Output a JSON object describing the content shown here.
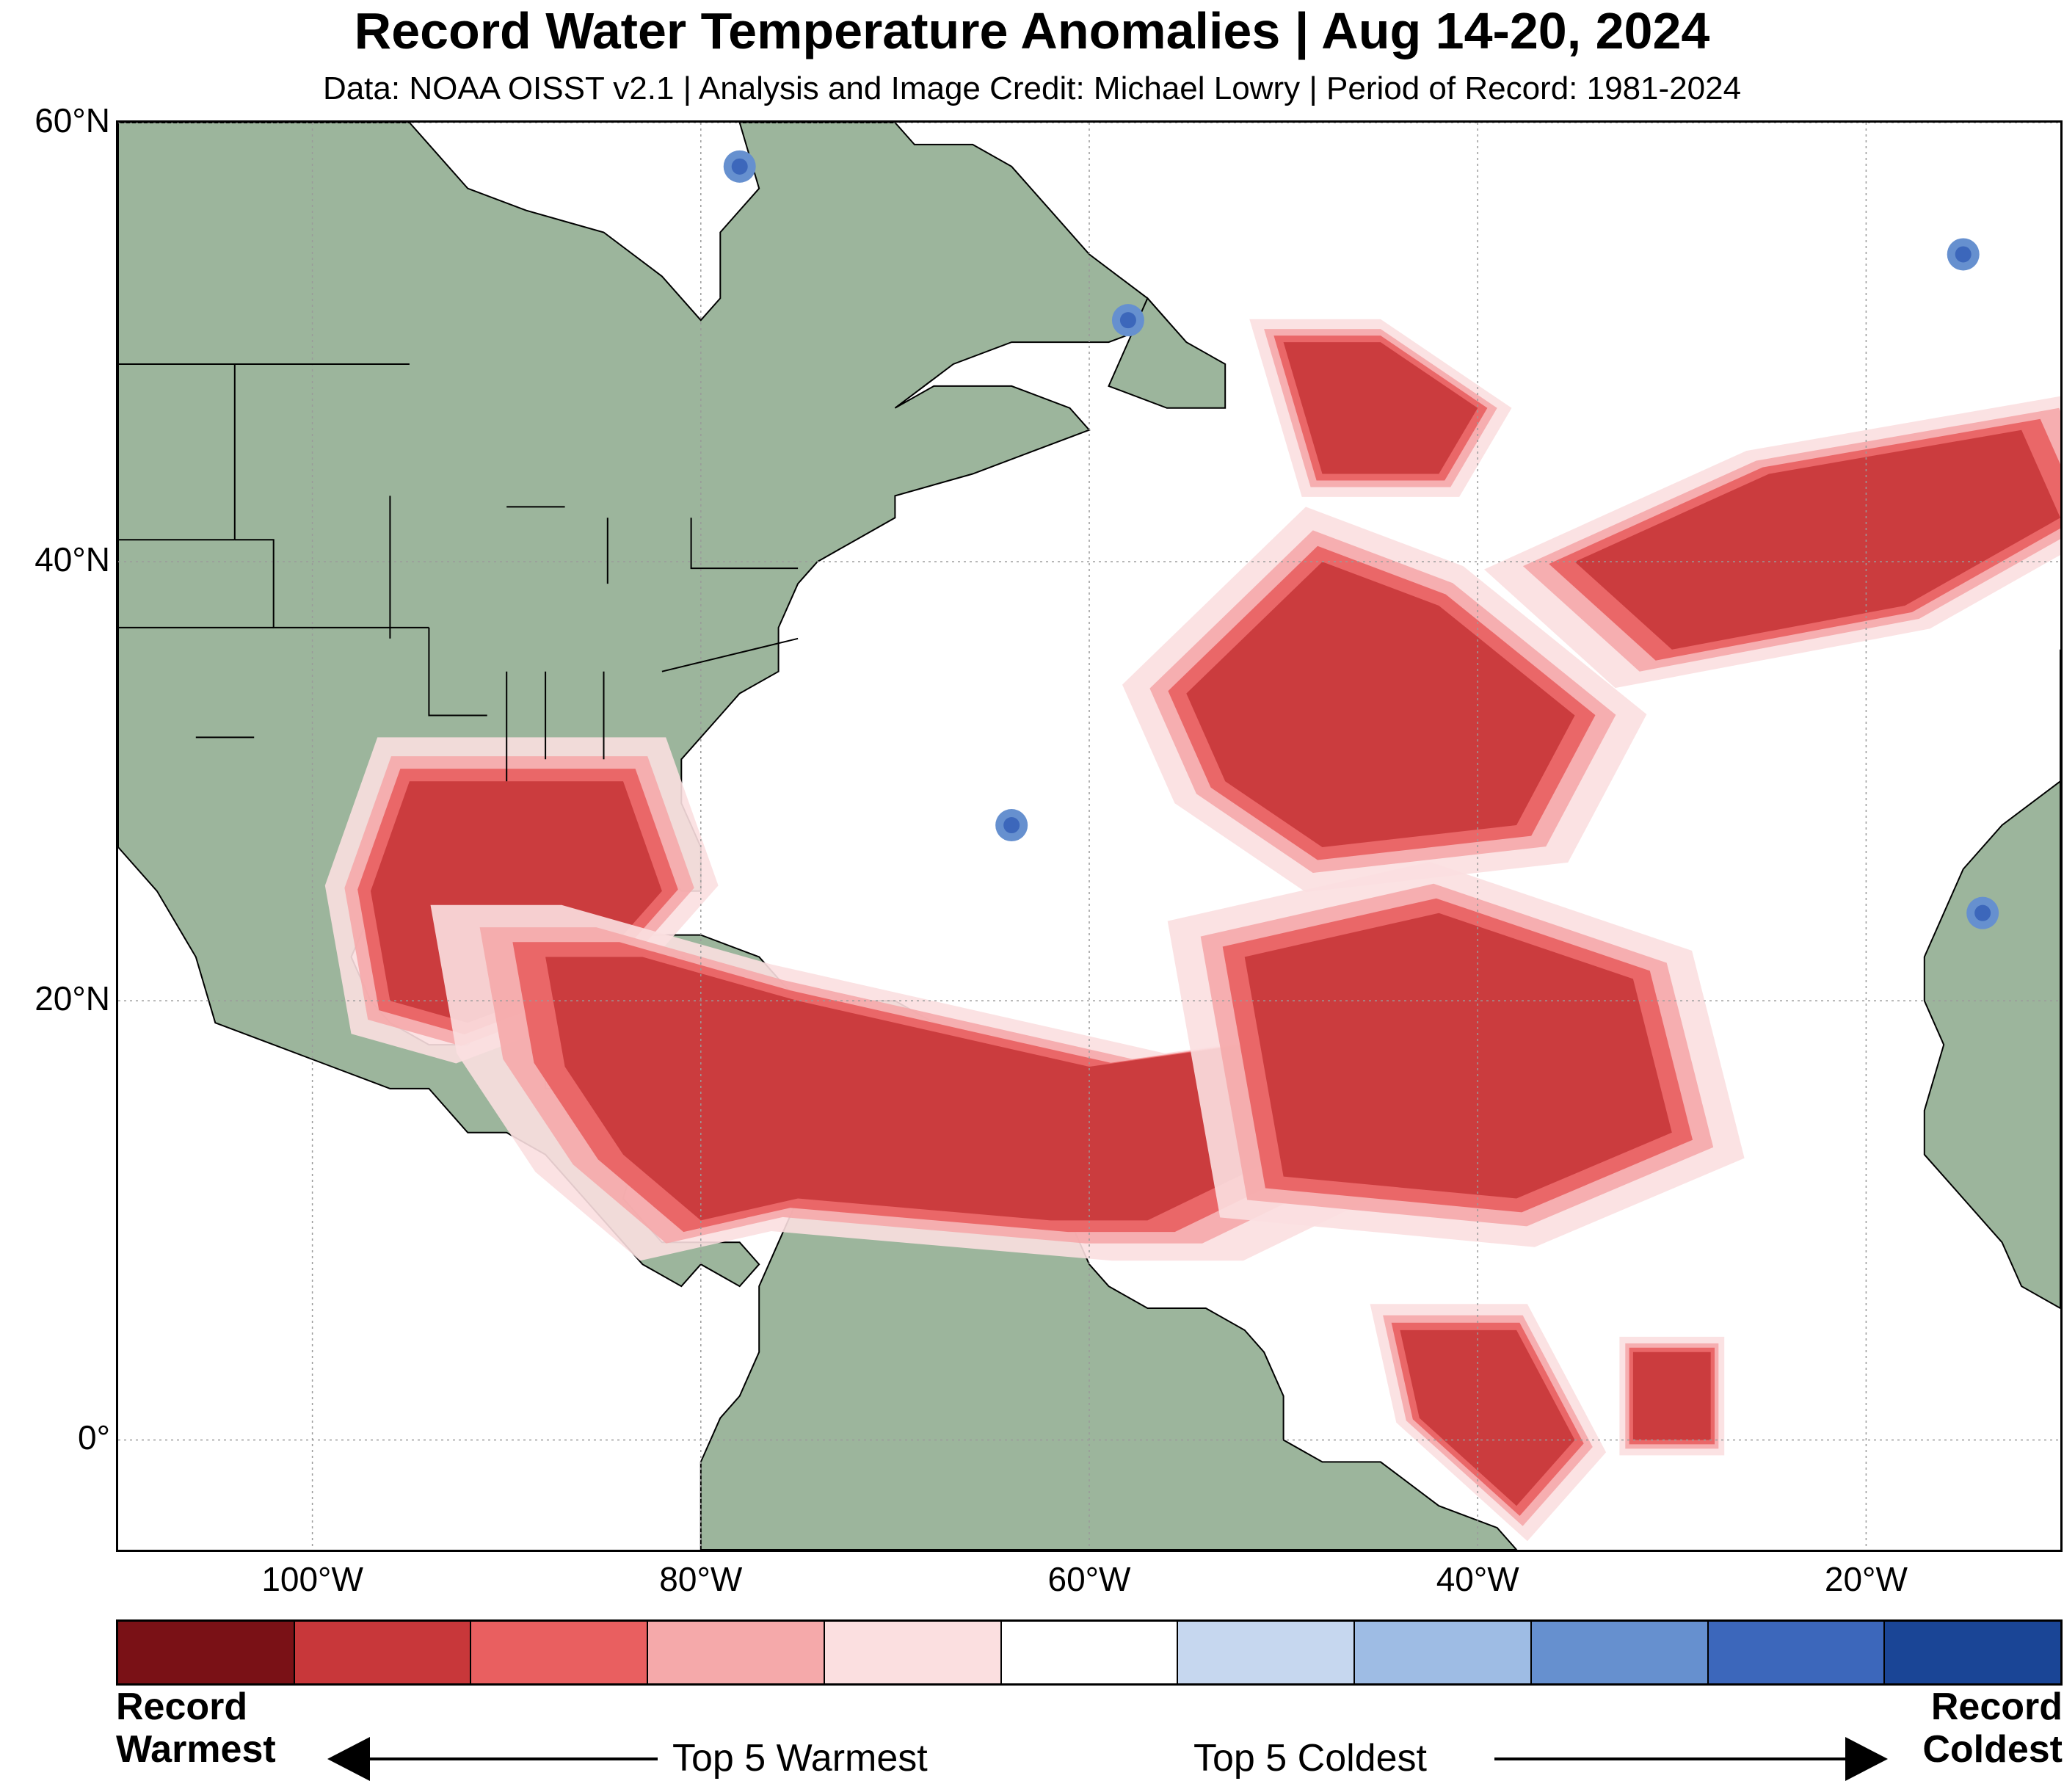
{
  "header": {
    "title": "Record Water Temperature Anomalies | Aug 14-20, 2024",
    "subtitle": "Data: NOAA OISST v2.1 | Analysis and Image Credit: Michael Lowry | Period of Record: 1981-2024"
  },
  "map": {
    "extent": {
      "lon_min": -110,
      "lon_max": -10,
      "lat_min": -5,
      "lat_max": 60
    },
    "land_color": "#9cb59c",
    "ocean_color": "#ffffff",
    "lat_labels": [
      {
        "lat": 60,
        "text": "60°N"
      },
      {
        "lat": 40,
        "text": "40°N"
      },
      {
        "lat": 20,
        "text": "20°N"
      },
      {
        "lat": 0,
        "text": "0°"
      }
    ],
    "lon_labels": [
      {
        "lon": -100,
        "text": "100°W"
      },
      {
        "lon": -80,
        "text": "80°W"
      },
      {
        "lon": -60,
        "text": "60°W"
      },
      {
        "lon": -40,
        "text": "40°W"
      },
      {
        "lon": -20,
        "text": "20°W"
      }
    ]
  },
  "colorbar": {
    "colors": [
      "#7a1116",
      "#c8373a",
      "#e95f60",
      "#f5a9aa",
      "#fbdfe0",
      "#ffffff",
      "#c6d7ef",
      "#9ebce4",
      "#6690cf",
      "#3c67bb",
      "#1a4596"
    ],
    "left_label_line1": "Record",
    "left_label_line2": "Warmest",
    "right_label_line1": "Record",
    "right_label_line2": "Coldest",
    "mid_left_label": "Top 5 Warmest",
    "mid_right_label": "Top 5 Coldest"
  }
}
